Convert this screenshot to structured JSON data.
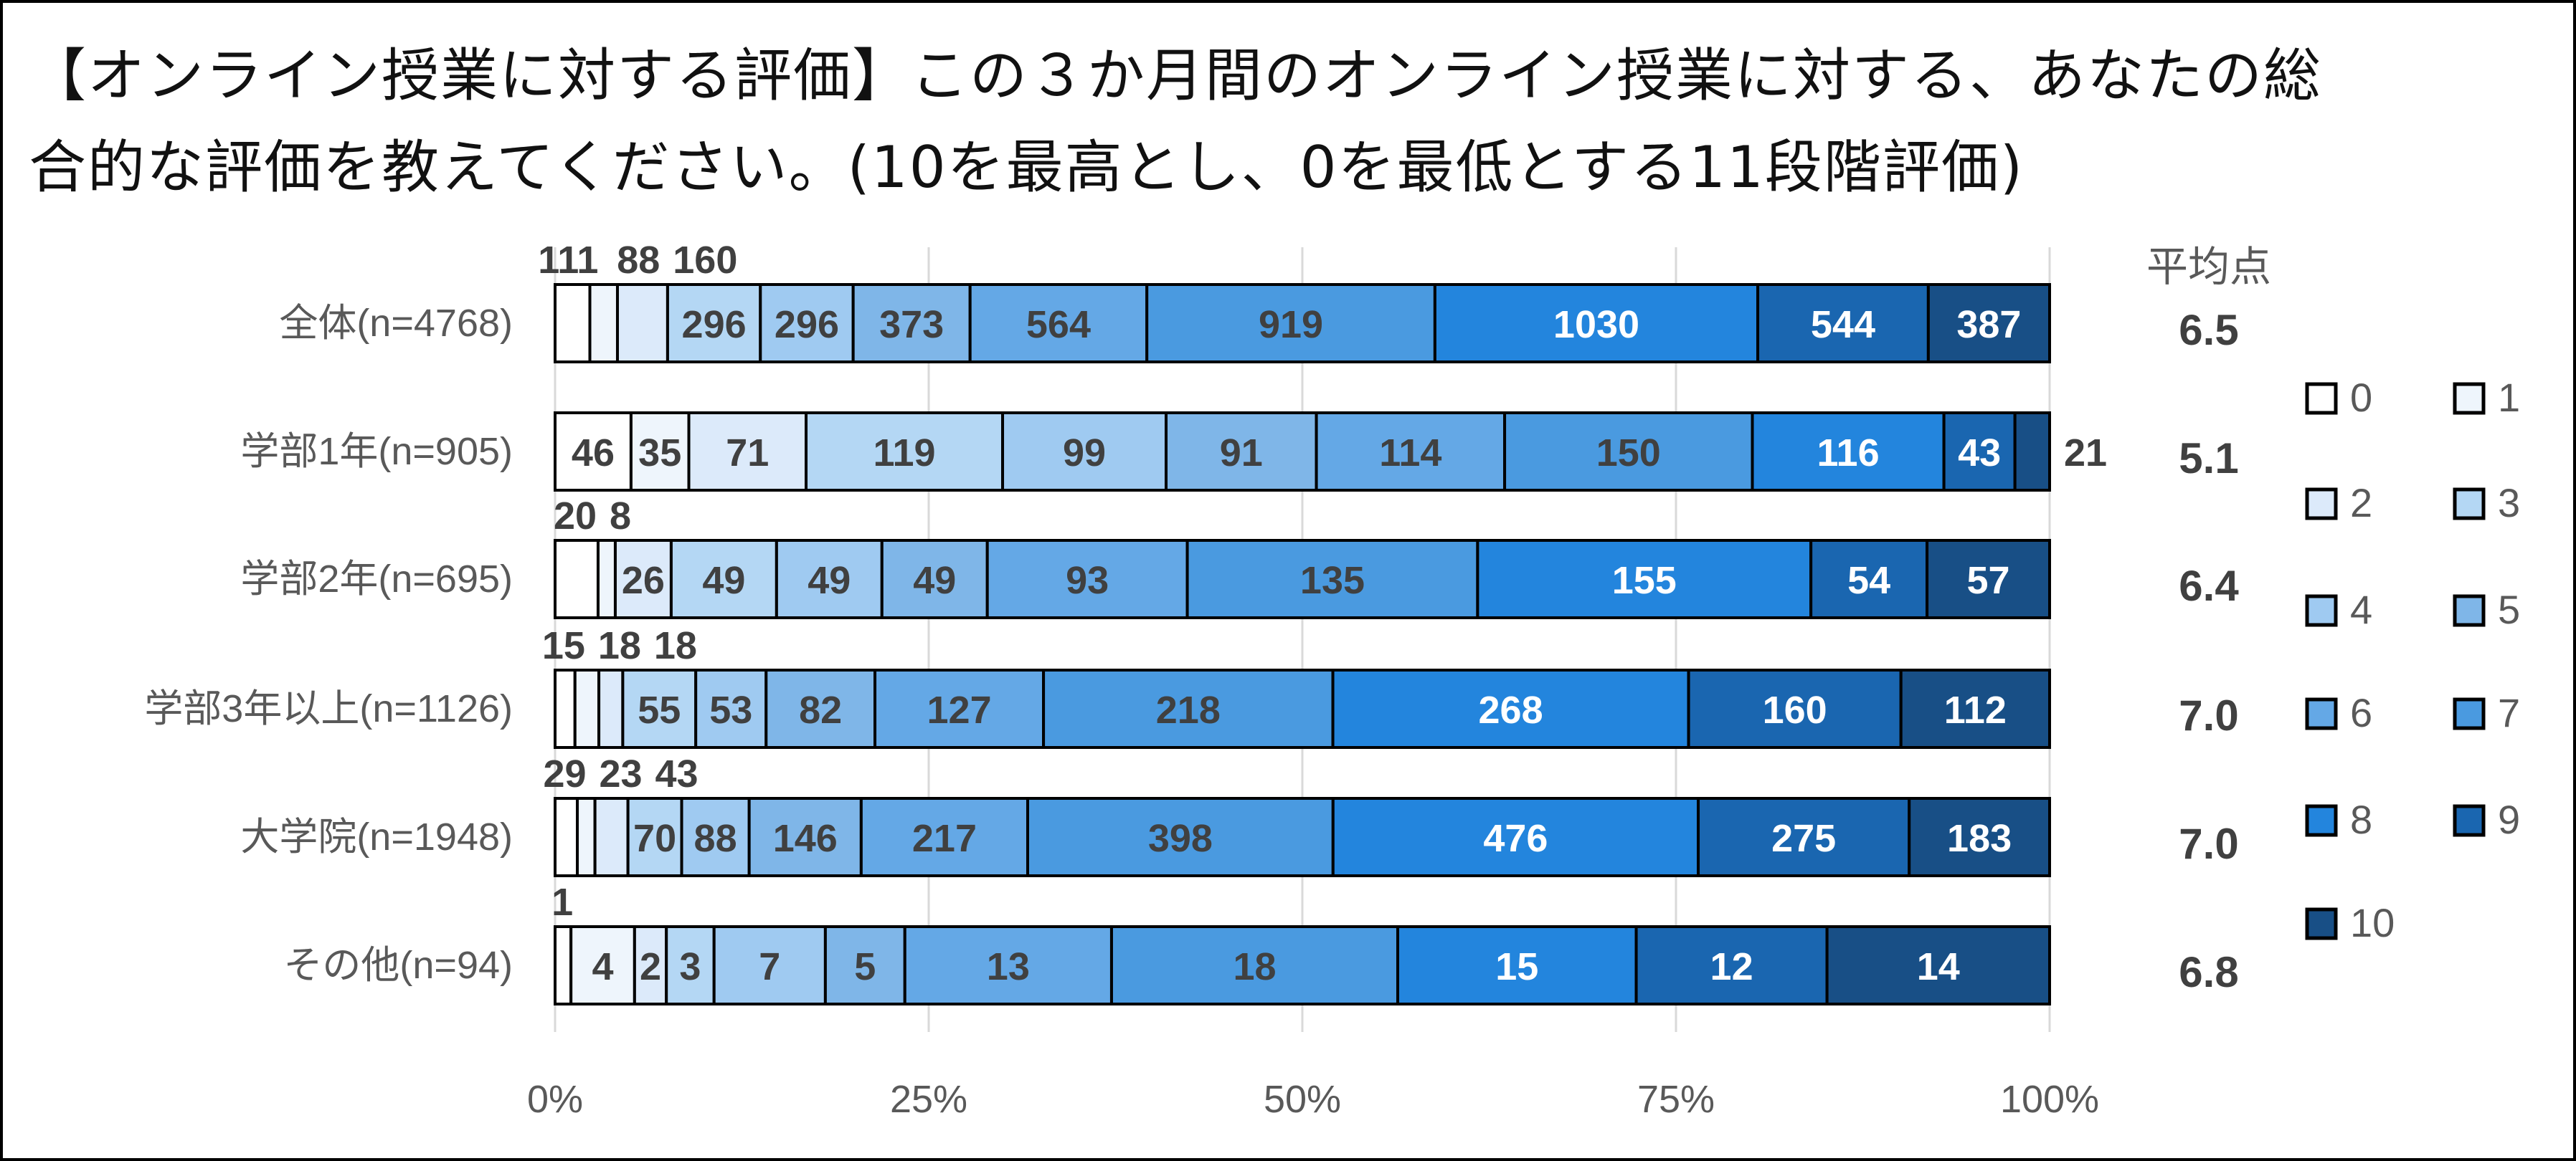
{
  "chart_data": {
    "type": "bar",
    "orientation": "horizontal",
    "stacked": "percent",
    "title_line1": "【オンライン授業に対する評価】この３か月間のオンライン授業に対する、あなたの総",
    "title_line2": "合的な評価を教えてください。(10を最高とし、0を最低とする11段階評価)",
    "categories": [
      "全体(n=4768)",
      "学部1年(n=905)",
      "学部2年(n=695)",
      "学部3年以上(n=1126)",
      "大学院(n=1948)",
      "その他(n=94)"
    ],
    "series": [
      {
        "name": "0",
        "color": "#ffffff",
        "label_color": "#404040",
        "values": [
          111,
          46,
          20,
          15,
          29,
          1
        ]
      },
      {
        "name": "1",
        "color": "#eef5fc",
        "label_color": "#404040",
        "values": [
          88,
          35,
          8,
          18,
          23,
          4
        ]
      },
      {
        "name": "2",
        "color": "#dceafa",
        "label_color": "#404040",
        "values": [
          160,
          71,
          26,
          18,
          43,
          2
        ]
      },
      {
        "name": "3",
        "color": "#b4d7f4",
        "label_color": "#404040",
        "values": [
          296,
          119,
          49,
          55,
          70,
          3
        ]
      },
      {
        "name": "4",
        "color": "#9fcaf1",
        "label_color": "#404040",
        "values": [
          296,
          99,
          49,
          53,
          88,
          7
        ]
      },
      {
        "name": "5",
        "color": "#7fb6e8",
        "label_color": "#404040",
        "values": [
          373,
          91,
          49,
          82,
          146,
          5
        ]
      },
      {
        "name": "6",
        "color": "#64a8e6",
        "label_color": "#404040",
        "values": [
          564,
          114,
          93,
          127,
          217,
          13
        ]
      },
      {
        "name": "7",
        "color": "#4a9ae0",
        "label_color": "#404040",
        "values": [
          919,
          150,
          135,
          218,
          398,
          18
        ]
      },
      {
        "name": "8",
        "color": "#2385dd",
        "label_color": "#ffffff",
        "values": [
          1030,
          116,
          155,
          268,
          476,
          15
        ]
      },
      {
        "name": "9",
        "color": "#1a66b0",
        "label_color": "#ffffff",
        "values": [
          544,
          43,
          54,
          160,
          275,
          12
        ]
      },
      {
        "name": "10",
        "color": "#184f86",
        "label_color": "#ffffff",
        "values": [
          387,
          21,
          57,
          112,
          183,
          14
        ]
      }
    ],
    "xlim": [
      0,
      100
    ],
    "x_ticks": [
      "0%",
      "25%",
      "50%",
      "75%",
      "100%"
    ],
    "grid": true,
    "legend_placement": "right",
    "average_header": "平均点",
    "averages": [
      "6.5",
      "5.1",
      "6.4",
      "7.0",
      "7.0",
      "6.8"
    ]
  }
}
